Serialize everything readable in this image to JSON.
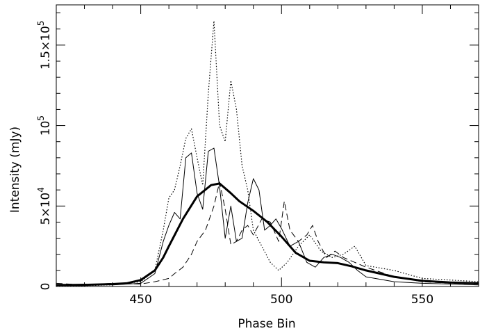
{
  "chart_data": {
    "type": "line",
    "xlabel": "Phase Bin",
    "ylabel": "Intensity (mJy)",
    "xlim": [
      420,
      570
    ],
    "ylim": [
      0,
      175000
    ],
    "x_ticks": [
      {
        "value": 450,
        "label": "450"
      },
      {
        "value": 500,
        "label": "500"
      },
      {
        "value": 550,
        "label": "550"
      }
    ],
    "y_ticks": [
      {
        "value": 0,
        "label": "0",
        "mant": "",
        "exp": ""
      },
      {
        "value": 50000,
        "label": "",
        "mant": "5×10",
        "exp": "4"
      },
      {
        "value": 100000,
        "label": "",
        "mant": "10",
        "exp": "5"
      },
      {
        "value": 150000,
        "label": "",
        "mant": "1.5×10",
        "exp": "5"
      }
    ],
    "series": [
      {
        "style": "thick-solid",
        "x": [
          420,
          430,
          440,
          445,
          450,
          455,
          458,
          460,
          465,
          470,
          475,
          478,
          482,
          485,
          490,
          495,
          500,
          505,
          510,
          515,
          520,
          525,
          530,
          540,
          550,
          560,
          570
        ],
        "y": [
          1000,
          1000,
          1500,
          2000,
          4000,
          10000,
          18000,
          25000,
          42000,
          56000,
          63000,
          64000,
          58000,
          53000,
          47000,
          40000,
          31000,
          21000,
          16000,
          15000,
          14500,
          12500,
          10000,
          6000,
          3500,
          2500,
          2000
        ]
      },
      {
        "style": "thin-solid",
        "x": [
          420,
          430,
          440,
          450,
          455,
          458,
          460,
          462,
          464,
          466,
          468,
          470,
          472,
          474,
          476,
          478,
          480,
          482,
          484,
          486,
          488,
          490,
          492,
          494,
          496,
          498,
          500,
          503,
          506,
          509,
          512,
          515,
          518,
          521,
          524,
          527,
          530,
          540,
          550,
          560,
          570
        ],
        "y": [
          1000,
          1500,
          1000,
          2000,
          8000,
          28000,
          38000,
          46000,
          42000,
          80000,
          83000,
          58000,
          48000,
          84000,
          86000,
          62000,
          30000,
          50000,
          28000,
          30000,
          52000,
          67000,
          60000,
          35000,
          38000,
          42000,
          36000,
          25000,
          28000,
          15000,
          12000,
          18000,
          20000,
          18000,
          15000,
          10000,
          6000,
          3000,
          2000,
          1500,
          1000
        ]
      },
      {
        "style": "dotted",
        "x": [
          420,
          430,
          440,
          450,
          455,
          458,
          460,
          462,
          464,
          466,
          468,
          470,
          472,
          474,
          476,
          478,
          480,
          482,
          484,
          486,
          488,
          490,
          493,
          496,
          499,
          502,
          506,
          510,
          514,
          518,
          522,
          526,
          530,
          540,
          550,
          560,
          570
        ],
        "y": [
          500,
          500,
          1000,
          3000,
          10000,
          35000,
          55000,
          60000,
          75000,
          92000,
          98000,
          80000,
          63000,
          120000,
          165000,
          100000,
          90000,
          128000,
          110000,
          75000,
          60000,
          35000,
          25000,
          15000,
          10000,
          15000,
          25000,
          32000,
          22000,
          18000,
          20000,
          25000,
          13000,
          10000,
          5000,
          4000,
          3000
        ]
      },
      {
        "style": "dashed",
        "x": [
          420,
          430,
          440,
          450,
          455,
          460,
          462,
          465,
          468,
          470,
          473,
          476,
          478,
          480,
          482,
          484,
          486,
          488,
          490,
          493,
          496,
          499,
          501,
          503,
          506,
          509,
          511,
          513,
          516,
          519,
          522,
          526,
          530,
          540,
          550,
          560,
          570
        ],
        "y": [
          2000,
          1000,
          2000,
          1500,
          3000,
          5000,
          8000,
          12000,
          20000,
          28000,
          35000,
          50000,
          65000,
          48000,
          26000,
          28000,
          35000,
          38000,
          32000,
          42000,
          40000,
          28000,
          53000,
          35000,
          28000,
          32000,
          38000,
          28000,
          18000,
          22000,
          18000,
          15000,
          12000,
          6000,
          3000,
          2000,
          1500
        ]
      }
    ]
  }
}
